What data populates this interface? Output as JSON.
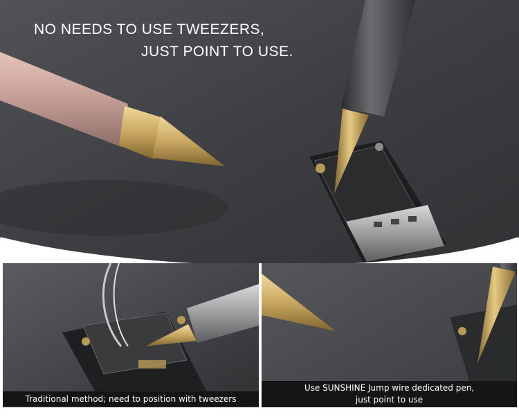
{
  "headline": {
    "line1": "NO NEEDS TO USE TWEEZERS,",
    "line2": "JUST POINT TO USE."
  },
  "captions": {
    "left": "Traditional method;  need to position with tweezers",
    "right_line1": "Use SUNSHINE Jump wire dedicated pen,",
    "right_line2": "just point to use"
  },
  "colors": {
    "background": "#3a3b3d",
    "caption_bg": "#151515",
    "text": "#ffffff",
    "brass": "#c9a861",
    "rose_gold": "#c7a29a"
  }
}
